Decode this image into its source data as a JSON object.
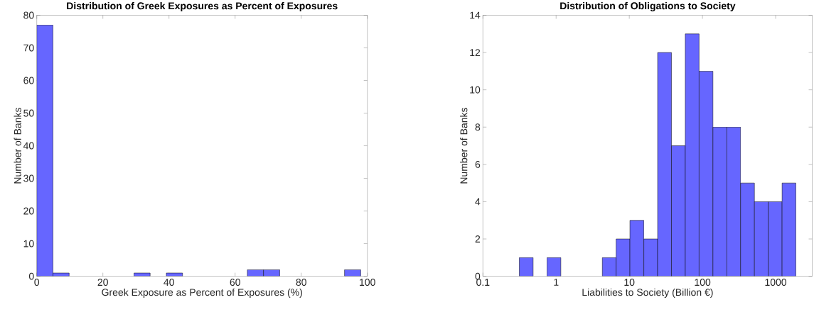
{
  "chart_data": [
    {
      "type": "histogram",
      "title": "Distribution of Greek Exposures as Percent of Exposures",
      "xlabel": "Greek Exposure as Percent of Exposures (%)",
      "ylabel": "Number of Banks",
      "color": "#6666ff",
      "bins": [
        0,
        4.9,
        9.8,
        14.7,
        19.6,
        24.5,
        29.4,
        34.3,
        39.2,
        44.1,
        49,
        53.9,
        58.8,
        63.7,
        68.6,
        73.5,
        78.4,
        83.3,
        88.2,
        93.1,
        98
      ],
      "values": [
        77,
        1,
        0,
        0,
        0,
        0,
        1,
        0,
        1,
        0,
        0,
        0,
        0,
        2,
        2,
        0,
        0,
        0,
        0,
        2
      ],
      "xlim": [
        0,
        100
      ],
      "ylim": [
        0,
        80
      ],
      "xticks": [
        0,
        20,
        40,
        60,
        80,
        100
      ],
      "yticks": [
        0,
        10,
        20,
        30,
        40,
        50,
        60,
        70,
        80
      ]
    },
    {
      "type": "histogram",
      "title": "Distribution of Obligations to Society",
      "xlabel": "Liabilities to Society (Billion €)",
      "ylabel": "Number of Banks",
      "color": "#6666ff",
      "log": "x",
      "bins": [
        0.314,
        0.485,
        0.75,
        1.16,
        1.79,
        2.77,
        4.28,
        6.61,
        10.2,
        15.8,
        24.4,
        37.7,
        58.2,
        89.9,
        139,
        215,
        332,
        513,
        793,
        1225,
        1892
      ],
      "values": [
        1,
        0,
        1,
        0,
        0,
        0,
        1,
        2,
        3,
        2,
        12,
        7,
        13,
        11,
        8,
        8,
        5,
        4,
        4,
        5
      ],
      "xlim": [
        0.1,
        3162
      ],
      "ylim": [
        0,
        14
      ],
      "xticks": [
        0.1,
        1,
        10,
        100,
        1000
      ],
      "yticks": [
        0,
        2,
        4,
        6,
        8,
        10,
        12,
        14
      ]
    }
  ]
}
